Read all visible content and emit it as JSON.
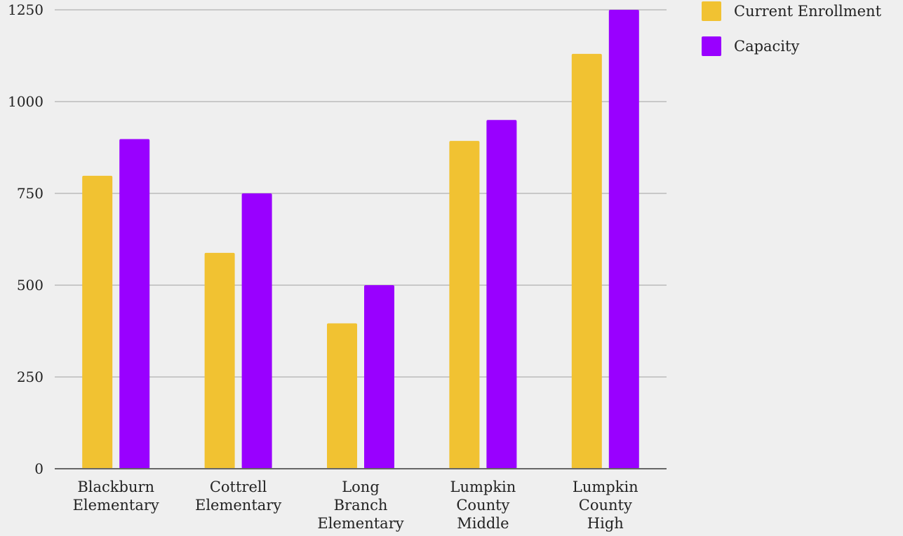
{
  "chart_data": {
    "type": "bar",
    "title": "",
    "xlabel": "",
    "ylabel": "",
    "categories": [
      [
        "Blackburn",
        "Elementary"
      ],
      [
        "Cottrell",
        "Elementary"
      ],
      [
        "Long",
        "Branch",
        "Elementary"
      ],
      [
        "Lumpkin",
        "County",
        "Middle"
      ],
      [
        "Lumpkin",
        "County",
        "High"
      ]
    ],
    "series": [
      {
        "name": "Current Enrollment",
        "color": "#f1c232",
        "values": [
          798,
          588,
          396,
          893,
          1130
        ]
      },
      {
        "name": "Capacity",
        "color": "#9900ff",
        "values": [
          898,
          750,
          500,
          950,
          1250
        ]
      }
    ],
    "yticks": [
      0,
      250,
      500,
      750,
      1000,
      1250
    ],
    "ylim": [
      0,
      1250
    ],
    "grid": true,
    "legend_position": "top-right"
  }
}
